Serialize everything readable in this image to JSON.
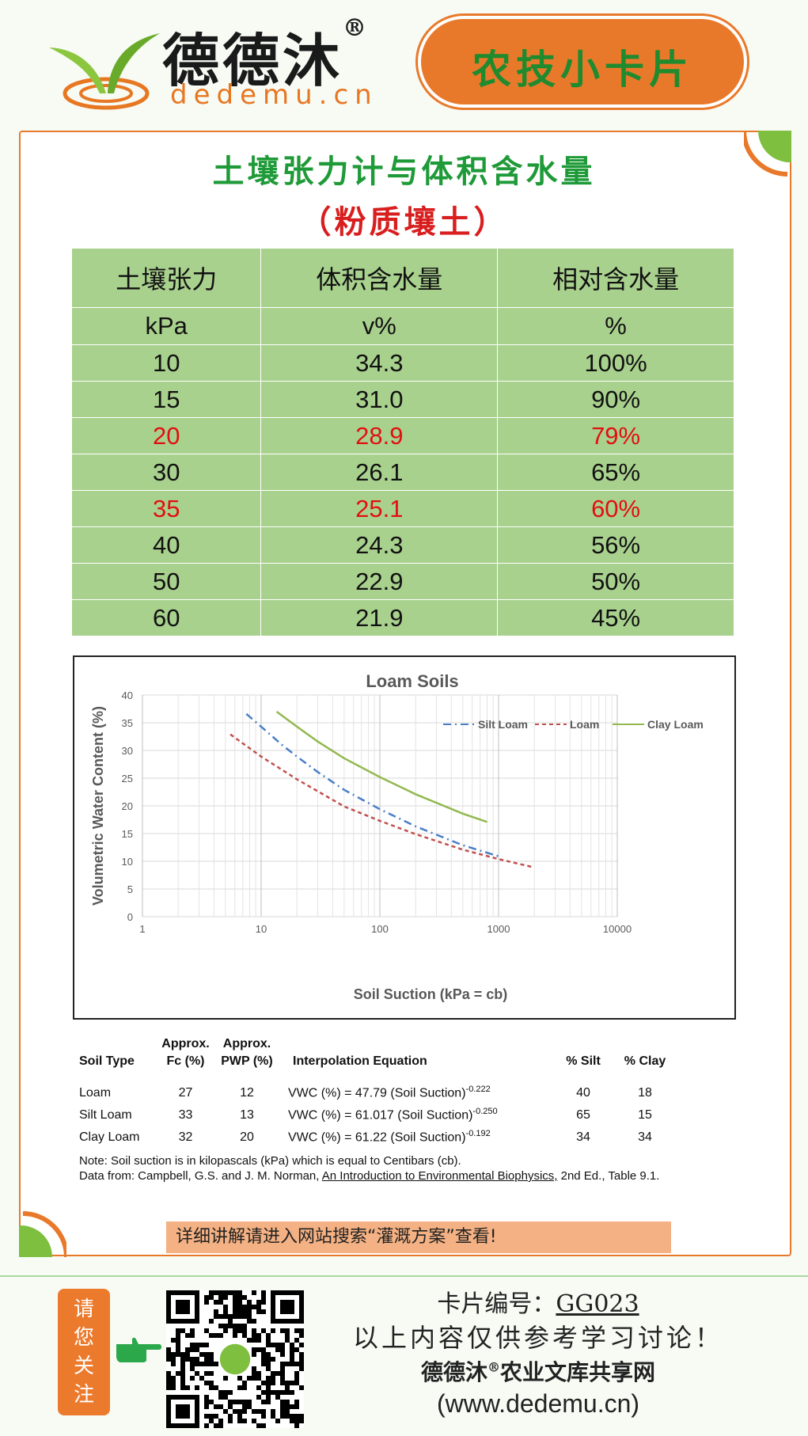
{
  "brand": {
    "name": "德德沐",
    "reg": "®",
    "url": "dedemu.cn",
    "badge": "农技小卡片"
  },
  "title": {
    "line1": "土壤张力计与体积含水量",
    "line2": "（粉质壤土）"
  },
  "table": {
    "headers": [
      "土壤张力",
      "体积含水量",
      "相对含水量"
    ],
    "units": [
      "kPa",
      "v%",
      "%"
    ],
    "rows": [
      [
        "10",
        "34.3",
        "100%"
      ],
      [
        "15",
        "31.0",
        "90%"
      ],
      [
        "20",
        "28.9",
        "79%"
      ],
      [
        "30",
        "26.1",
        "65%"
      ],
      [
        "35",
        "25.1",
        "60%"
      ],
      [
        "40",
        "24.3",
        "56%"
      ],
      [
        "50",
        "22.9",
        "50%"
      ],
      [
        "60",
        "21.9",
        "45%"
      ]
    ]
  },
  "chart_data": {
    "type": "line",
    "title": "Loam Soils",
    "xlabel": "Soil Suction (kPa = cb)",
    "ylabel": "Volumetric Water Content  (%)",
    "x_scale": "log",
    "xlim": [
      1,
      10000
    ],
    "ylim": [
      0,
      40
    ],
    "x_ticks": [
      "1",
      "10",
      "100",
      "1000",
      "10000"
    ],
    "y_ticks": [
      "0",
      "5",
      "10",
      "15",
      "20",
      "25",
      "30",
      "35",
      "40"
    ],
    "grid": true,
    "legend": "top-right",
    "series": [
      {
        "name": "Silt Loam",
        "color": "#4a7fc8",
        "dash": "dashdot",
        "x": [
          7.5,
          10,
          15,
          20,
          30,
          50,
          100,
          200,
          500,
          1000
        ],
        "y": [
          36.6,
          34.3,
          31.0,
          28.9,
          26.1,
          22.9,
          19.4,
          16.3,
          12.9,
          10.9
        ]
      },
      {
        "name": "Loam",
        "color": "#c0504d",
        "dash": "dashed",
        "x": [
          5.5,
          10,
          20,
          50,
          100,
          200,
          500,
          1000,
          1900
        ],
        "y": [
          32.9,
          28.9,
          24.8,
          19.9,
          17.3,
          14.9,
          12.1,
          10.4,
          9.0
        ]
      },
      {
        "name": "Clay Loam",
        "color": "#92b94f",
        "dash": "solid",
        "x": [
          13.5,
          20,
          30,
          50,
          100,
          200,
          500,
          800
        ],
        "y": [
          37.0,
          34.3,
          31.6,
          28.6,
          25.2,
          22.1,
          18.6,
          17.1
        ]
      }
    ]
  },
  "soil_table": {
    "headers": {
      "type": "Soil Type",
      "fc": [
        "Approx.",
        "Fc (%)"
      ],
      "pwp": [
        "Approx.",
        "PWP (%)"
      ],
      "eq": "Interpolation Equation",
      "silt": "% Silt",
      "clay": "% Clay"
    },
    "rows": [
      {
        "type": "Loam",
        "fc": "27",
        "pwp": "12",
        "eq": "VWC (%) = 47.79 (Soil Suction)",
        "exp": "-0.222",
        "silt": "40",
        "clay": "18"
      },
      {
        "type": "Silt Loam",
        "fc": "33",
        "pwp": "13",
        "eq": "VWC (%) = 61.017 (Soil Suction)",
        "exp": "-0.250",
        "silt": "65",
        "clay": "15"
      },
      {
        "type": "Clay Loam",
        "fc": "32",
        "pwp": "20",
        "eq": "VWC (%) = 61.22 (Soil Suction)",
        "exp": "-0.192",
        "silt": "34",
        "clay": "34"
      }
    ],
    "note": "Note:  Soil suction is in kilopascals (kPa) which is equal to Centibars (cb).",
    "source_prefix": "Data from: Campbell, G.S. and J. M. Norman, ",
    "source_book": "An Introduction to Environmental Biophysics,",
    "source_suffix": " 2nd Ed., Table 9.1."
  },
  "footer": {
    "strip": "详细讲解请进入网站搜索“灌溉方案”查看!",
    "follow": "请您关注",
    "card_label": "卡片编号：",
    "card_code": "GG023",
    "disclaimer": "以上内容仅供参考学习讨论！",
    "site_name": "德德沐",
    "site_reg": "®",
    "site_suffix": "农业文库共享网",
    "site_url": "(www.dedemu.cn)"
  },
  "colors": {
    "orange": "#e9792a",
    "green": "#1f9a38",
    "table_bg": "#a9d18e",
    "highlight": "#e01010"
  },
  "highlight_rows": [
    2,
    4
  ]
}
